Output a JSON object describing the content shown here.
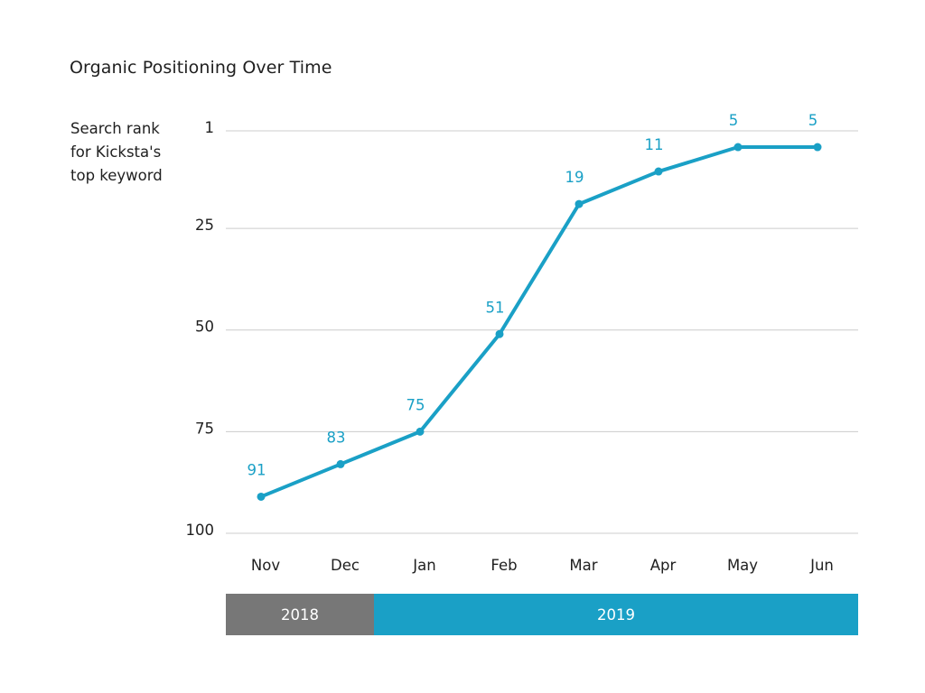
{
  "chart_data": {
    "type": "line",
    "title": "Organic Positioning Over Time",
    "ylabel_lines": [
      "Search rank",
      "for Kicksta's",
      "top keyword"
    ],
    "xlabel": "",
    "categories": [
      "Nov",
      "Dec",
      "Jan",
      "Feb",
      "Mar",
      "Apr",
      "May",
      "Jun"
    ],
    "series": [
      {
        "values": [
          91,
          83,
          75,
          51,
          19,
          11,
          5,
          5
        ]
      }
    ],
    "yticks": [
      1,
      25,
      50,
      75,
      100
    ],
    "ylim": [
      100,
      1
    ],
    "y_inverted": true,
    "grid": true,
    "year_bands": [
      {
        "label": "2018",
        "from": "Nov",
        "to": "Dec",
        "color": "#777777"
      },
      {
        "label": "2019",
        "from": "Jan",
        "to": "Jun",
        "color": "#1aa0c6"
      }
    ],
    "colors": {
      "line": "#1aa0c6",
      "label": "#1aa0c6",
      "grid": "#cccccc"
    }
  }
}
